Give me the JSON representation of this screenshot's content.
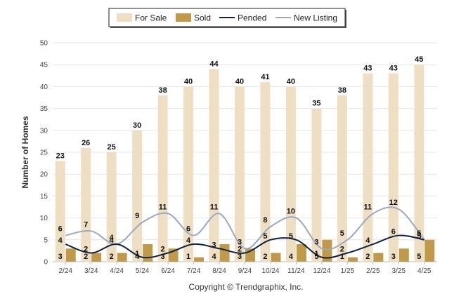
{
  "legend": {
    "placement": "top-center",
    "items": [
      {
        "label": "For Sale",
        "kind": "bar",
        "color": "#EEDFC3"
      },
      {
        "label": "Sold",
        "kind": "bar",
        "color": "#C09A48"
      },
      {
        "label": "Pended",
        "kind": "line",
        "color": "#0E2344"
      },
      {
        "label": "New Listing",
        "kind": "line",
        "color": "#9BA8C4"
      }
    ]
  },
  "copyright": "Copyright © Trendgraphix, Inc.",
  "chart_data": {
    "type": "bar",
    "title": "",
    "xlabel": "",
    "ylabel": "Number of Homes",
    "ylim": [
      0,
      50
    ],
    "yticks": [
      0,
      5,
      10,
      15,
      20,
      25,
      30,
      35,
      40,
      45,
      50
    ],
    "grid": true,
    "categories": [
      "2/24",
      "3/24",
      "4/24",
      "5/24",
      "6/24",
      "7/24",
      "8/24",
      "9/24",
      "10/24",
      "11/24",
      "12/24",
      "1/25",
      "2/25",
      "3/25",
      "4/25"
    ],
    "series": [
      {
        "name": "For Sale",
        "type": "bar",
        "color": "#EEDFC3",
        "values": [
          23,
          26,
          25,
          30,
          38,
          40,
          44,
          40,
          41,
          40,
          35,
          38,
          43,
          43,
          45
        ]
      },
      {
        "name": "Sold",
        "type": "bar",
        "color": "#C09A48",
        "values": [
          3,
          2,
          2,
          4,
          3,
          1,
          4,
          3,
          2,
          4,
          5,
          1,
          2,
          3,
          5
        ]
      },
      {
        "name": "Pended",
        "type": "line",
        "color": "#0E2344",
        "values": [
          4,
          2,
          4,
          1,
          2,
          4,
          3,
          2,
          5,
          5,
          1,
          2,
          4,
          6,
          5
        ]
      },
      {
        "name": "New Listing",
        "type": "line",
        "color": "#9BA8C4",
        "values": [
          6,
          7,
          4,
          9,
          11,
          6,
          11,
          3,
          8,
          10,
          3,
          5,
          11,
          12,
          5
        ]
      }
    ]
  }
}
